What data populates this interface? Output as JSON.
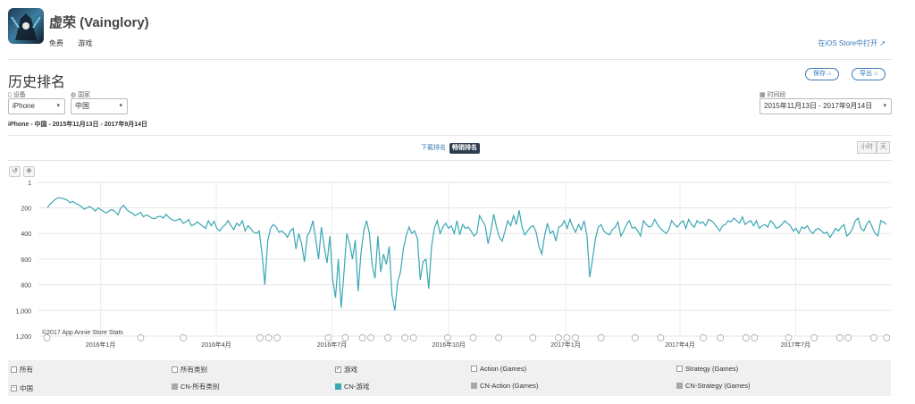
{
  "app": {
    "name": "虚荣 (Vainglory)",
    "price": "免费",
    "category": "游戏",
    "open_store_label": "在iOS Store中打开"
  },
  "page": {
    "title": "历史排名",
    "save_label": "保存",
    "export_label": "导出"
  },
  "filters": {
    "device_label": "设备",
    "device_value": "iPhone",
    "country_label": "国家",
    "country_value": "中国",
    "period_label": "时间段",
    "period_value": "2015年11月13日 - 2017年9月14日",
    "breadcrumb": "iPhone - 中国 - 2015年11月13日 - 2017年9月14日"
  },
  "tabs": {
    "download_label": "下载排名",
    "revenue_label": "畅销排名",
    "hour_label": "小时",
    "day_label": "天"
  },
  "chart_data": {
    "type": "line",
    "y_reversed": true,
    "ylim": [
      1,
      1200
    ],
    "y_ticks": [
      "1",
      "200",
      "400",
      "600",
      "800",
      "1,000",
      "1,200"
    ],
    "x_ticks": [
      "2016年1月",
      "2016年4月",
      "2016年7月",
      "2016年10月",
      "2017年1月",
      "2017年4月",
      "2017年7月"
    ],
    "x_range": [
      "2015-11-13",
      "2017-09-14"
    ],
    "watermark": "©2017 App Annie Store Stats",
    "line_color": "#3aa7b3",
    "series": [
      {
        "name": "CN-游戏",
        "values": [
          200,
          170,
          150,
          130,
          120,
          125,
          130,
          140,
          160,
          150,
          165,
          175,
          190,
          210,
          200,
          190,
          205,
          225,
          200,
          215,
          230,
          240,
          220,
          215,
          230,
          255,
          200,
          180,
          210,
          230,
          240,
          260,
          250,
          235,
          270,
          255,
          265,
          280,
          285,
          270,
          265,
          280,
          250,
          275,
          290,
          300,
          295,
          285,
          320,
          310,
          290,
          340,
          330,
          310,
          325,
          345,
          360,
          300,
          340,
          305,
          360,
          380,
          350,
          330,
          300,
          340,
          370,
          320,
          340,
          300,
          380,
          340,
          360,
          390,
          400,
          380,
          560,
          800,
          460,
          360,
          330,
          350,
          390,
          380,
          400,
          430,
          380,
          360,
          520,
          400,
          480,
          620,
          420,
          380,
          300,
          450,
          600,
          350,
          500,
          630,
          420,
          760,
          900,
          600,
          980,
          700,
          400,
          480,
          600,
          450,
          850,
          560,
          380,
          300,
          400,
          650,
          750,
          420,
          700,
          560,
          640,
          500,
          880,
          1000,
          780,
          700,
          520,
          420,
          350,
          400,
          380,
          440,
          760,
          620,
          600,
          830,
          500,
          360,
          300,
          400,
          350,
          320,
          360,
          340,
          400,
          300,
          410,
          330,
          360,
          350,
          380,
          420,
          400,
          260,
          300,
          340,
          480,
          380,
          250,
          350,
          430,
          460,
          380,
          300,
          340,
          260,
          330,
          220,
          350,
          410,
          380,
          350,
          340,
          390,
          500,
          560,
          420,
          320,
          400,
          380,
          460,
          350,
          340,
          300,
          360,
          290,
          350,
          390,
          330,
          370,
          300,
          420,
          740,
          600,
          440,
          350,
          330,
          380,
          400,
          410,
          370,
          350,
          310,
          420,
          380,
          330,
          300,
          360,
          350,
          380,
          420,
          300,
          330,
          350,
          340,
          290,
          330,
          360,
          380,
          400,
          370,
          300,
          330,
          350,
          320,
          300,
          360,
          290,
          330,
          350,
          300,
          320,
          310,
          340,
          290,
          300,
          320,
          350,
          380,
          340,
          330,
          300,
          310,
          280,
          300,
          320,
          270,
          330,
          310,
          300,
          340,
          300,
          360,
          340,
          330,
          350,
          300,
          320,
          360,
          350,
          330,
          300,
          320,
          340,
          380,
          360,
          400,
          350,
          360,
          340,
          380,
          400,
          370,
          360,
          380,
          400,
          390,
          430,
          400,
          360,
          380,
          350,
          330,
          420,
          400,
          360,
          300,
          280,
          360,
          380,
          330,
          300,
          350,
          400,
          420,
          300,
          310,
          330
        ]
      }
    ]
  },
  "legend": {
    "row1": [
      "所有",
      "所有类别",
      "游戏",
      "Action (Games)",
      "Strategy (Games)"
    ],
    "row2": [
      "中国",
      "CN-所有类别",
      "CN-游戏",
      "CN-Action (Games)",
      "CN-Strategy (Games)"
    ],
    "colors": [
      "#a8a8a8",
      "#3aa7b3",
      "#a8a8a8",
      "#a8a8a8"
    ]
  }
}
